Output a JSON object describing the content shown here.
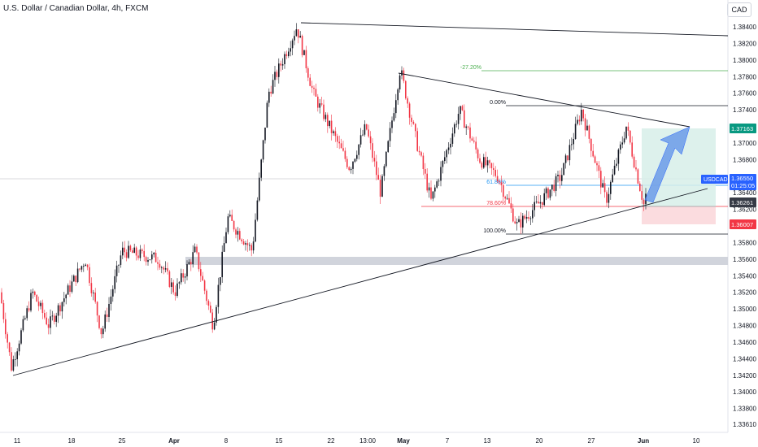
{
  "header": {
    "symbol_title": "U.S. Dollar / Canadian Dollar, 4h, FXCM",
    "currency": "CAD"
  },
  "chart_data": {
    "type": "candlestick",
    "ylim": [
      1.3355,
      1.3855
    ],
    "price_ticks": [
      "1.38400",
      "1.38200",
      "1.38000",
      "1.37800",
      "1.37600",
      "1.37400",
      "1.37200",
      "1.37000",
      "1.36800",
      "1.36600",
      "1.36400",
      "1.36200",
      "1.36000",
      "1.35800",
      "1.35600",
      "1.35400",
      "1.35200",
      "1.35000",
      "1.34800",
      "1.34600",
      "1.34400",
      "1.34200",
      "1.34000",
      "1.33800",
      "1.33610"
    ],
    "date_labels": [
      "11",
      "18",
      "25",
      "Apr",
      "8",
      "15",
      "22",
      "13:00",
      "May",
      "7",
      "13",
      "20",
      "27",
      "Jun",
      "10"
    ],
    "bold_date_labels": [
      "Apr",
      "May",
      "Jun"
    ],
    "price_labels": [
      {
        "text": "USDCAD",
        "type": "symbol",
        "color": "#2962ff"
      },
      {
        "text": "1.36550",
        "type": "last",
        "color": "#2962ff"
      },
      {
        "text": "01:25:05",
        "type": "countdown",
        "color": "#2962ff"
      },
      {
        "text": "1.37163",
        "type": "target",
        "color": "#089981"
      },
      {
        "text": "1.36261",
        "type": "entry",
        "color": "#363a45"
      },
      {
        "text": "1.36007",
        "type": "stop",
        "color": "#f23645"
      }
    ],
    "fib_levels": [
      {
        "label": "-27.20%",
        "color": "#4caf50"
      },
      {
        "label": "0.00%",
        "color": "#131722"
      },
      {
        "label": "61.80%",
        "color": "#2196f3"
      },
      {
        "label": "78.60%",
        "color": "#f23645"
      },
      {
        "label": "100.00%",
        "color": "#131722"
      }
    ],
    "colors": {
      "up": "#131722",
      "down": "#f23645",
      "profit_zone": "#d7efe9",
      "loss_zone": "#fbd8dc",
      "arrow": "#5b8fe8",
      "zone": "#d1d4dc"
    }
  }
}
